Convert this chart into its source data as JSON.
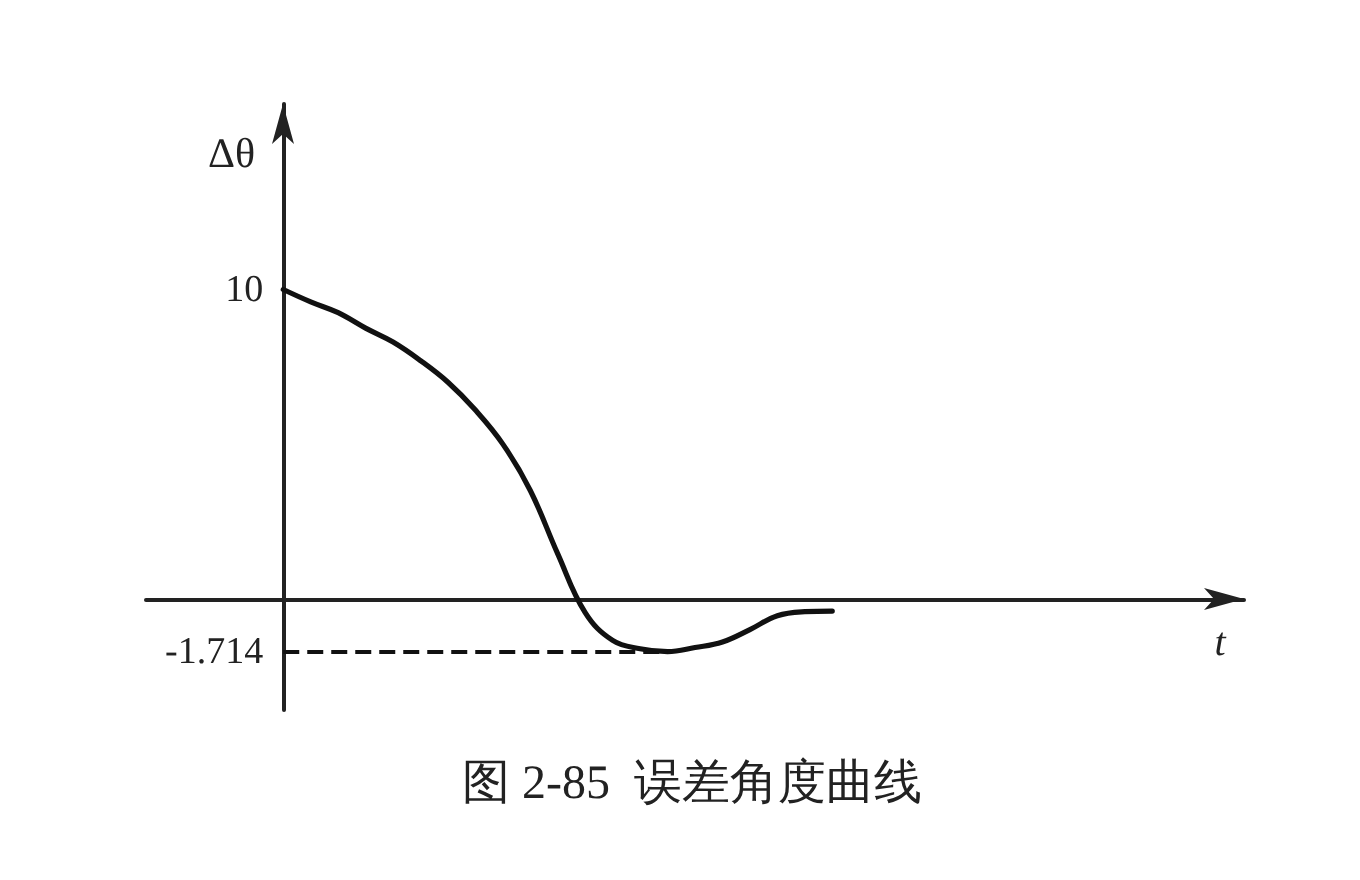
{
  "chart_data": {
    "type": "line",
    "title": "图 2-85  误差角度曲线",
    "xlabel": "t",
    "ylabel": "Δθ",
    "categories": [
      null,
      null,
      null,
      null,
      null,
      null,
      null,
      null,
      null,
      null,
      null,
      null,
      null,
      null,
      null,
      null,
      null,
      null,
      null,
      null,
      null,
      null,
      null,
      null,
      null,
      null,
      null,
      null,
      null,
      null,
      null,
      null,
      null,
      null,
      null,
      null,
      null,
      null,
      null,
      null,
      null
    ],
    "values": [
      null,
      null,
      null,
      null,
      null,
      10,
      9.6,
      9.25,
      8.75,
      8.3,
      7.7,
      7.0,
      6.1,
      5.0,
      3.5,
      1.45,
      -0.45,
      -1.35,
      -1.62,
      -1.714,
      -1.58,
      -1.4,
      -1.0,
      -0.55,
      -0.42,
      -0.4,
      null,
      null,
      null,
      null,
      null,
      null,
      null,
      null,
      null,
      null,
      null,
      null,
      null,
      null,
      null
    ],
    "color": "#111111",
    "ylim": [
      -3.6,
      16
    ],
    "yticks": [
      -1.714,
      10
    ],
    "ref_lines": [
      {
        "axis": "y",
        "value": -1.714,
        "line_style": "dashed",
        "color": "#111111"
      }
    ],
    "tick_labels": "y",
    "grid": false,
    "marker": "none",
    "line_style": "solid"
  }
}
